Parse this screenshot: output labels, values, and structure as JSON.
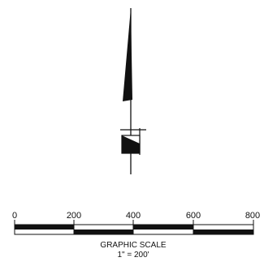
{
  "scale_bar": {
    "tick_labels": [
      "0",
      "200",
      "400",
      "600",
      "800"
    ],
    "caption": "GRAPHIC SCALE",
    "ratio": "1\" = 200'"
  },
  "colors": {
    "ink": "#111111",
    "paper": "#ffffff"
  },
  "icons": {
    "north_arrow": "north-arrow-icon"
  }
}
